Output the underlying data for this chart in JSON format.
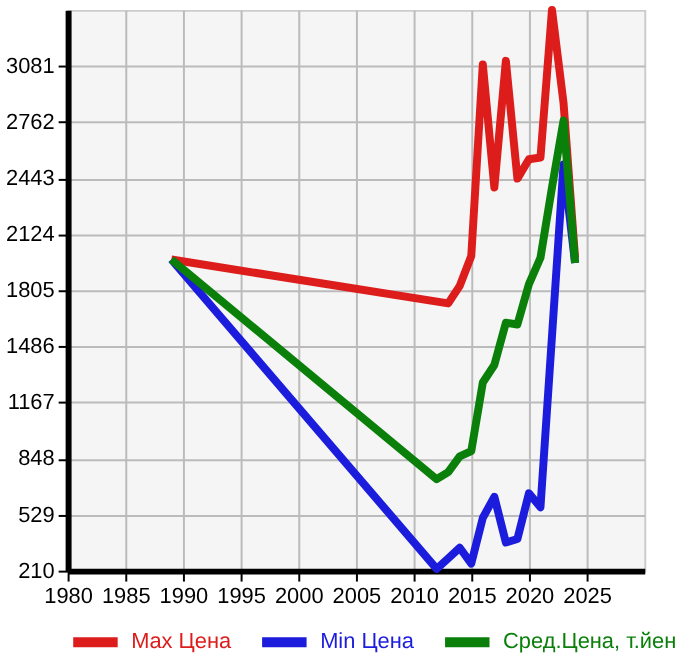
{
  "chart_data": {
    "type": "line",
    "xlim": [
      1980,
      2030
    ],
    "xticks": [
      1980,
      1985,
      1990,
      1995,
      2000,
      2005,
      2010,
      2015,
      2020,
      2025
    ],
    "ylim": [
      210,
      3400
    ],
    "yticks": [
      210,
      529,
      848,
      1167,
      1486,
      1805,
      2124,
      2443,
      2762,
      3081
    ],
    "grid": true,
    "legend": "bottom",
    "series": [
      {
        "name": "Max Цена",
        "color": "#dd1c1c",
        "x": [
          1989,
          2013,
          2014,
          2015,
          2016,
          2017,
          2018,
          2019,
          2020,
          2021,
          2022,
          2023,
          2024
        ],
        "values": [
          1980,
          1730,
          1830,
          2000,
          3090,
          2390,
          3110,
          2440,
          2550,
          2560,
          3400,
          2870,
          1990
        ]
      },
      {
        "name": "Min Цена",
        "color": "#1c1cdd",
        "x": [
          1989,
          2012,
          2013,
          2014,
          2015,
          2016,
          2017,
          2018,
          2019,
          2020,
          2021,
          2023,
          2024
        ],
        "values": [
          1980,
          220,
          280,
          340,
          250,
          510,
          630,
          370,
          390,
          650,
          570,
          2520,
          1960
        ]
      },
      {
        "name": "Сред.Цена, т.йен",
        "color": "#0a7f0a",
        "x": [
          1989,
          2012,
          2013,
          2014,
          2015,
          2016,
          2017,
          2018,
          2019,
          2020,
          2021,
          2022,
          2023,
          2024
        ],
        "values": [
          1980,
          730,
          770,
          860,
          890,
          1280,
          1380,
          1620,
          1610,
          1840,
          1990,
          2390,
          2770,
          1960
        ]
      }
    ]
  }
}
